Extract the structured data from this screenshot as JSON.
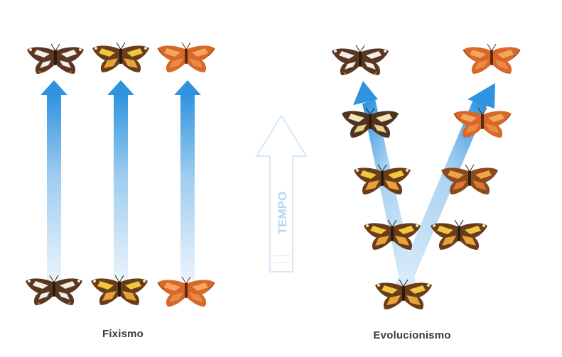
{
  "labels": {
    "fixism": "Fixismo",
    "evolutionism": "Evolucionismo",
    "time": "TEMPO"
  },
  "colors": {
    "arrow_blue": "#2f93df",
    "arrow_blue_light": "#cfe6f7",
    "time_arrow_outline": "#d7e8f5",
    "time_text": "#b9d5ec",
    "dark_morph_base": "#5b3a24",
    "dark_morph_spot": "#f3eee6",
    "yellow_morph_base": "#6a3d1a",
    "yellow_morph_spot": "#f2c640",
    "orange_morph_base": "#d7682a",
    "orange_morph_spot": "#f4a55e"
  },
  "butterfly_morphs": [
    "dark-white",
    "brown-yellow",
    "orange"
  ],
  "fixism": {
    "lineages": [
      {
        "morph": "dark-white"
      },
      {
        "morph": "brown-yellow"
      },
      {
        "morph": "orange"
      }
    ]
  },
  "evolutionism": {
    "ancestor": {
      "morph": "brown-yellow"
    },
    "left_branch": [
      "brown-yellow",
      "brown-yellow",
      "cream-brown",
      "dark-white"
    ],
    "right_branch": [
      "brown-yellow",
      "brown-orange",
      "orange",
      "orange"
    ]
  }
}
